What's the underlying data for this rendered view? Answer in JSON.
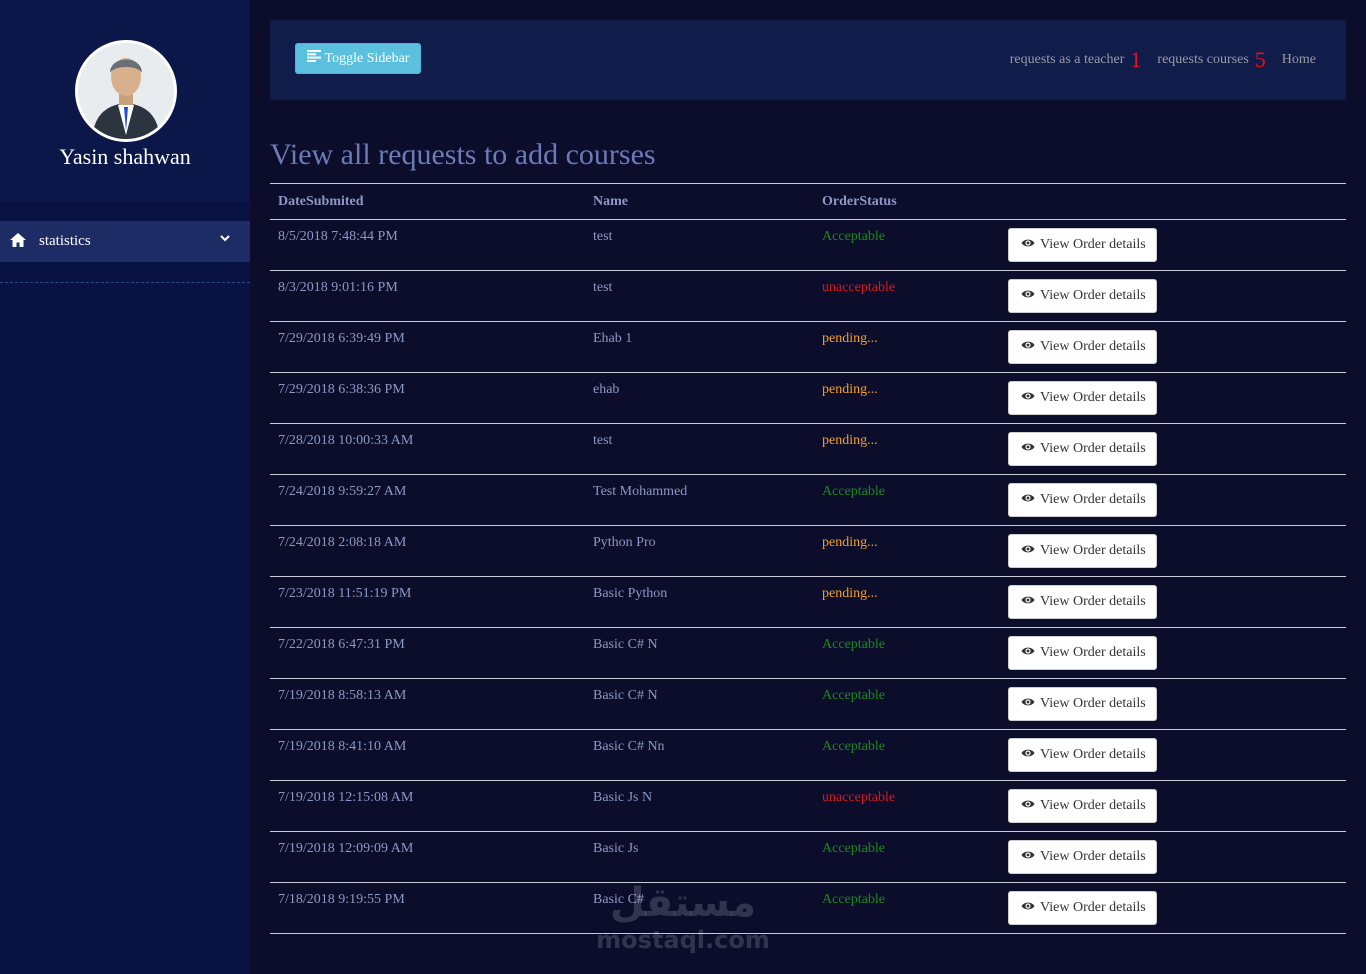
{
  "sidebar": {
    "username": "Yasin shahwan",
    "menu": [
      {
        "label": "statistics",
        "icon": "home-icon"
      }
    ]
  },
  "topbar": {
    "toggle_label": "Toggle Sidebar",
    "nav": {
      "teacher_label": "requests as a teacher",
      "teacher_count": "1",
      "courses_label": "requests courses",
      "courses_count": "5",
      "home_label": "Home"
    }
  },
  "page": {
    "title": "View all requests to add courses"
  },
  "table": {
    "headers": [
      "DateSubmited",
      "Name",
      "OrderStatus",
      ""
    ],
    "button_label": "View Order details",
    "rows": [
      {
        "date": "8/5/2018 7:48:44 PM",
        "name": "test",
        "status": "Acceptable"
      },
      {
        "date": "8/3/2018 9:01:16 PM",
        "name": "test",
        "status": "unacceptable"
      },
      {
        "date": "7/29/2018 6:39:49 PM",
        "name": "Ehab 1",
        "status": "pending..."
      },
      {
        "date": "7/29/2018 6:38:36 PM",
        "name": "ehab",
        "status": "pending..."
      },
      {
        "date": "7/28/2018 10:00:33 AM",
        "name": "test",
        "status": "pending..."
      },
      {
        "date": "7/24/2018 9:59:27 AM",
        "name": "Test Mohammed",
        "status": "Acceptable"
      },
      {
        "date": "7/24/2018 2:08:18 AM",
        "name": "Python Pro",
        "status": "pending..."
      },
      {
        "date": "7/23/2018 11:51:19 PM",
        "name": "Basic Python",
        "status": "pending..."
      },
      {
        "date": "7/22/2018 6:47:31 PM",
        "name": "Basic C# N",
        "status": "Acceptable"
      },
      {
        "date": "7/19/2018 8:58:13 AM",
        "name": "Basic C# N",
        "status": "Acceptable"
      },
      {
        "date": "7/19/2018 8:41:10 AM",
        "name": "Basic C# Nn",
        "status": "Acceptable"
      },
      {
        "date": "7/19/2018 12:15:08 AM",
        "name": "Basic Js N",
        "status": "unacceptable"
      },
      {
        "date": "7/19/2018 12:09:09 AM",
        "name": "Basic Js",
        "status": "Acceptable"
      },
      {
        "date": "7/18/2018 9:19:55 PM",
        "name": "Basic C#",
        "status": "Acceptable"
      }
    ]
  },
  "watermark": {
    "arabic": "مستقل",
    "latin": "mostaql.com"
  },
  "colors": {
    "acceptable": "#1c8a1c",
    "unacceptable": "#e0141e",
    "pending": "#f5a028",
    "accent": "#5bc0de"
  }
}
